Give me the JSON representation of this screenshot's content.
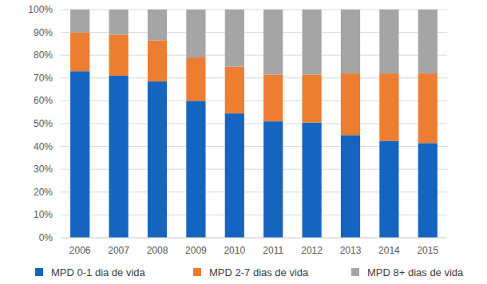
{
  "chart_data": {
    "type": "bar",
    "stacked": true,
    "grid": true,
    "legend": "bottom",
    "categories": [
      "2006",
      "2007",
      "2008",
      "2009",
      "2010",
      "2011",
      "2012",
      "2013",
      "2014",
      "2015"
    ],
    "series": [
      {
        "name": "MPD 0-1 dia de vida",
        "color": "#1565c0",
        "values": [
          73,
          71,
          68.5,
          60,
          54.5,
          51,
          50.5,
          45,
          42.5,
          41.5
        ]
      },
      {
        "name": "MPD 2-7 dias de vida",
        "color": "#ed7d31",
        "values": [
          17,
          18,
          18,
          19,
          20.5,
          20.5,
          21,
          27,
          29.5,
          30.5
        ]
      },
      {
        "name": "MPD 8+ dias de vida",
        "color": "#a5a5a5",
        "values": [
          10,
          11,
          13.5,
          21,
          25,
          28.5,
          28.5,
          28,
          28,
          28
        ]
      }
    ],
    "ylim": [
      0,
      100
    ],
    "yticks": [
      {
        "value": 0,
        "label": "0%"
      },
      {
        "value": 10,
        "label": "10%"
      },
      {
        "value": 20,
        "label": "20%"
      },
      {
        "value": 30,
        "label": "30%"
      },
      {
        "value": 40,
        "label": "40%"
      },
      {
        "value": 50,
        "label": "50%"
      },
      {
        "value": 60,
        "label": "60%"
      },
      {
        "value": 70,
        "label": "70%"
      },
      {
        "value": 80,
        "label": "80%"
      },
      {
        "value": 90,
        "label": "90%"
      },
      {
        "value": 100,
        "label": "100%"
      }
    ]
  }
}
